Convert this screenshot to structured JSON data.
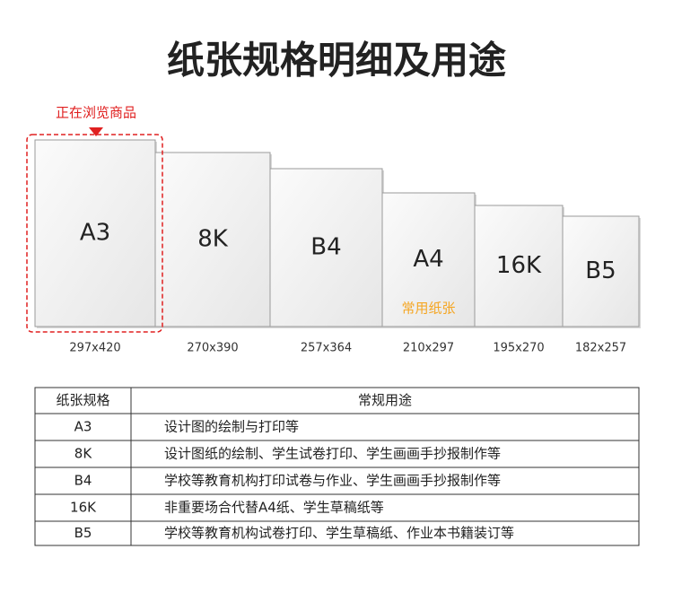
{
  "header": {
    "title": "纸张规格明细及用途"
  },
  "badge": "正在浏览商品",
  "papers": [
    {
      "name": "A3",
      "size": "297x420"
    },
    {
      "name": "8K",
      "size": "270x390"
    },
    {
      "name": "B4",
      "size": "257x364"
    },
    {
      "name": "A4",
      "size": "210x297",
      "note": "常用纸张"
    },
    {
      "name": "16K",
      "size": "195x270"
    },
    {
      "name": "B5",
      "size": "182x257"
    }
  ],
  "table": {
    "header": [
      "纸张规格",
      "常规用途"
    ],
    "rows": [
      [
        "A3",
        "设计图的绘制与打印等"
      ],
      [
        "8K",
        "设计图纸的绘制、学生试卷打印、学生画画手抄报制作等"
      ],
      [
        "B4",
        "学校等教育机构打印试卷与作业、学生画画手抄报制作等"
      ],
      [
        "16K",
        "非重要场合代替A4纸、学生草稿纸等"
      ],
      [
        "B5",
        "学校等教育机构试卷打印、学生草稿纸、作业本书籍装订等"
      ]
    ]
  }
}
